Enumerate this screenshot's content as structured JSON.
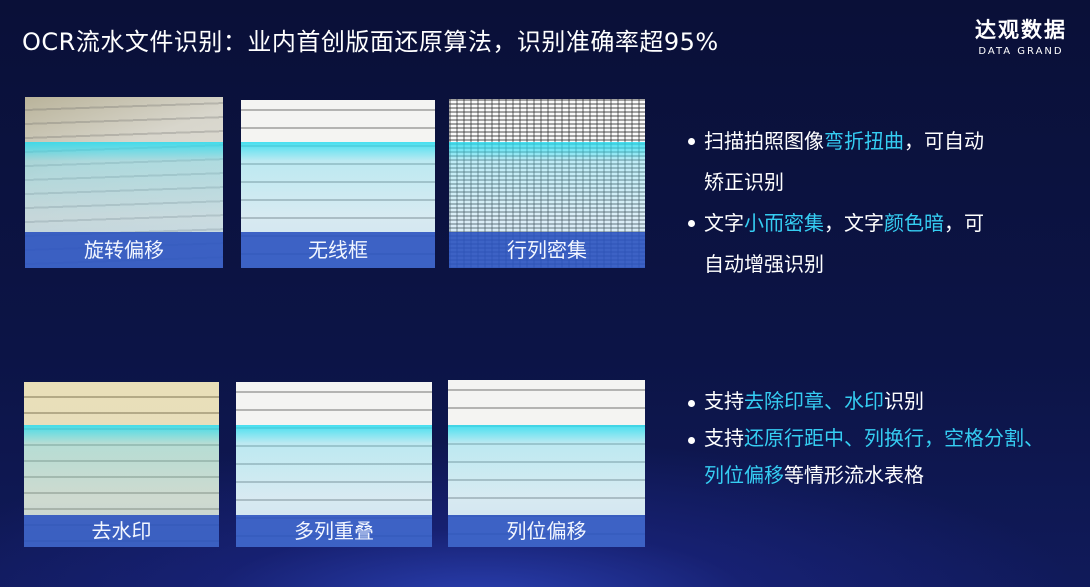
{
  "title": "OCR流水文件识别：业内首创版面还原算法，识别准确率超95%",
  "logo": {
    "cn": "达观数据",
    "en": "DATA GRAND"
  },
  "colors": {
    "highlight": "#35cdf2",
    "label_band": "#2850be",
    "background": "#0c1446"
  },
  "cards": [
    {
      "label": "旋转偏移"
    },
    {
      "label": "无线框"
    },
    {
      "label": "行列密集"
    },
    {
      "label": "去水印"
    },
    {
      "label": "多列重叠"
    },
    {
      "label": "列位偏移"
    }
  ],
  "bullets_top": [
    {
      "a": "扫描拍照图像",
      "b": "弯折扭曲",
      "c": "，可自动",
      "d": "矫正识别"
    },
    {
      "a": "文字",
      "b": "小而密集",
      "c": "，文字",
      "d": "颜色暗",
      "e": "，可",
      "f": "自动增强识别"
    }
  ],
  "bullets_bottom": [
    {
      "a": "支持",
      "b": "去除印章、水印",
      "c": "识别"
    },
    {
      "a": "支持",
      "b": "还原行距中、列换行，空格分割、",
      "c": "列位偏移",
      "d": "等情形流水表格"
    }
  ]
}
